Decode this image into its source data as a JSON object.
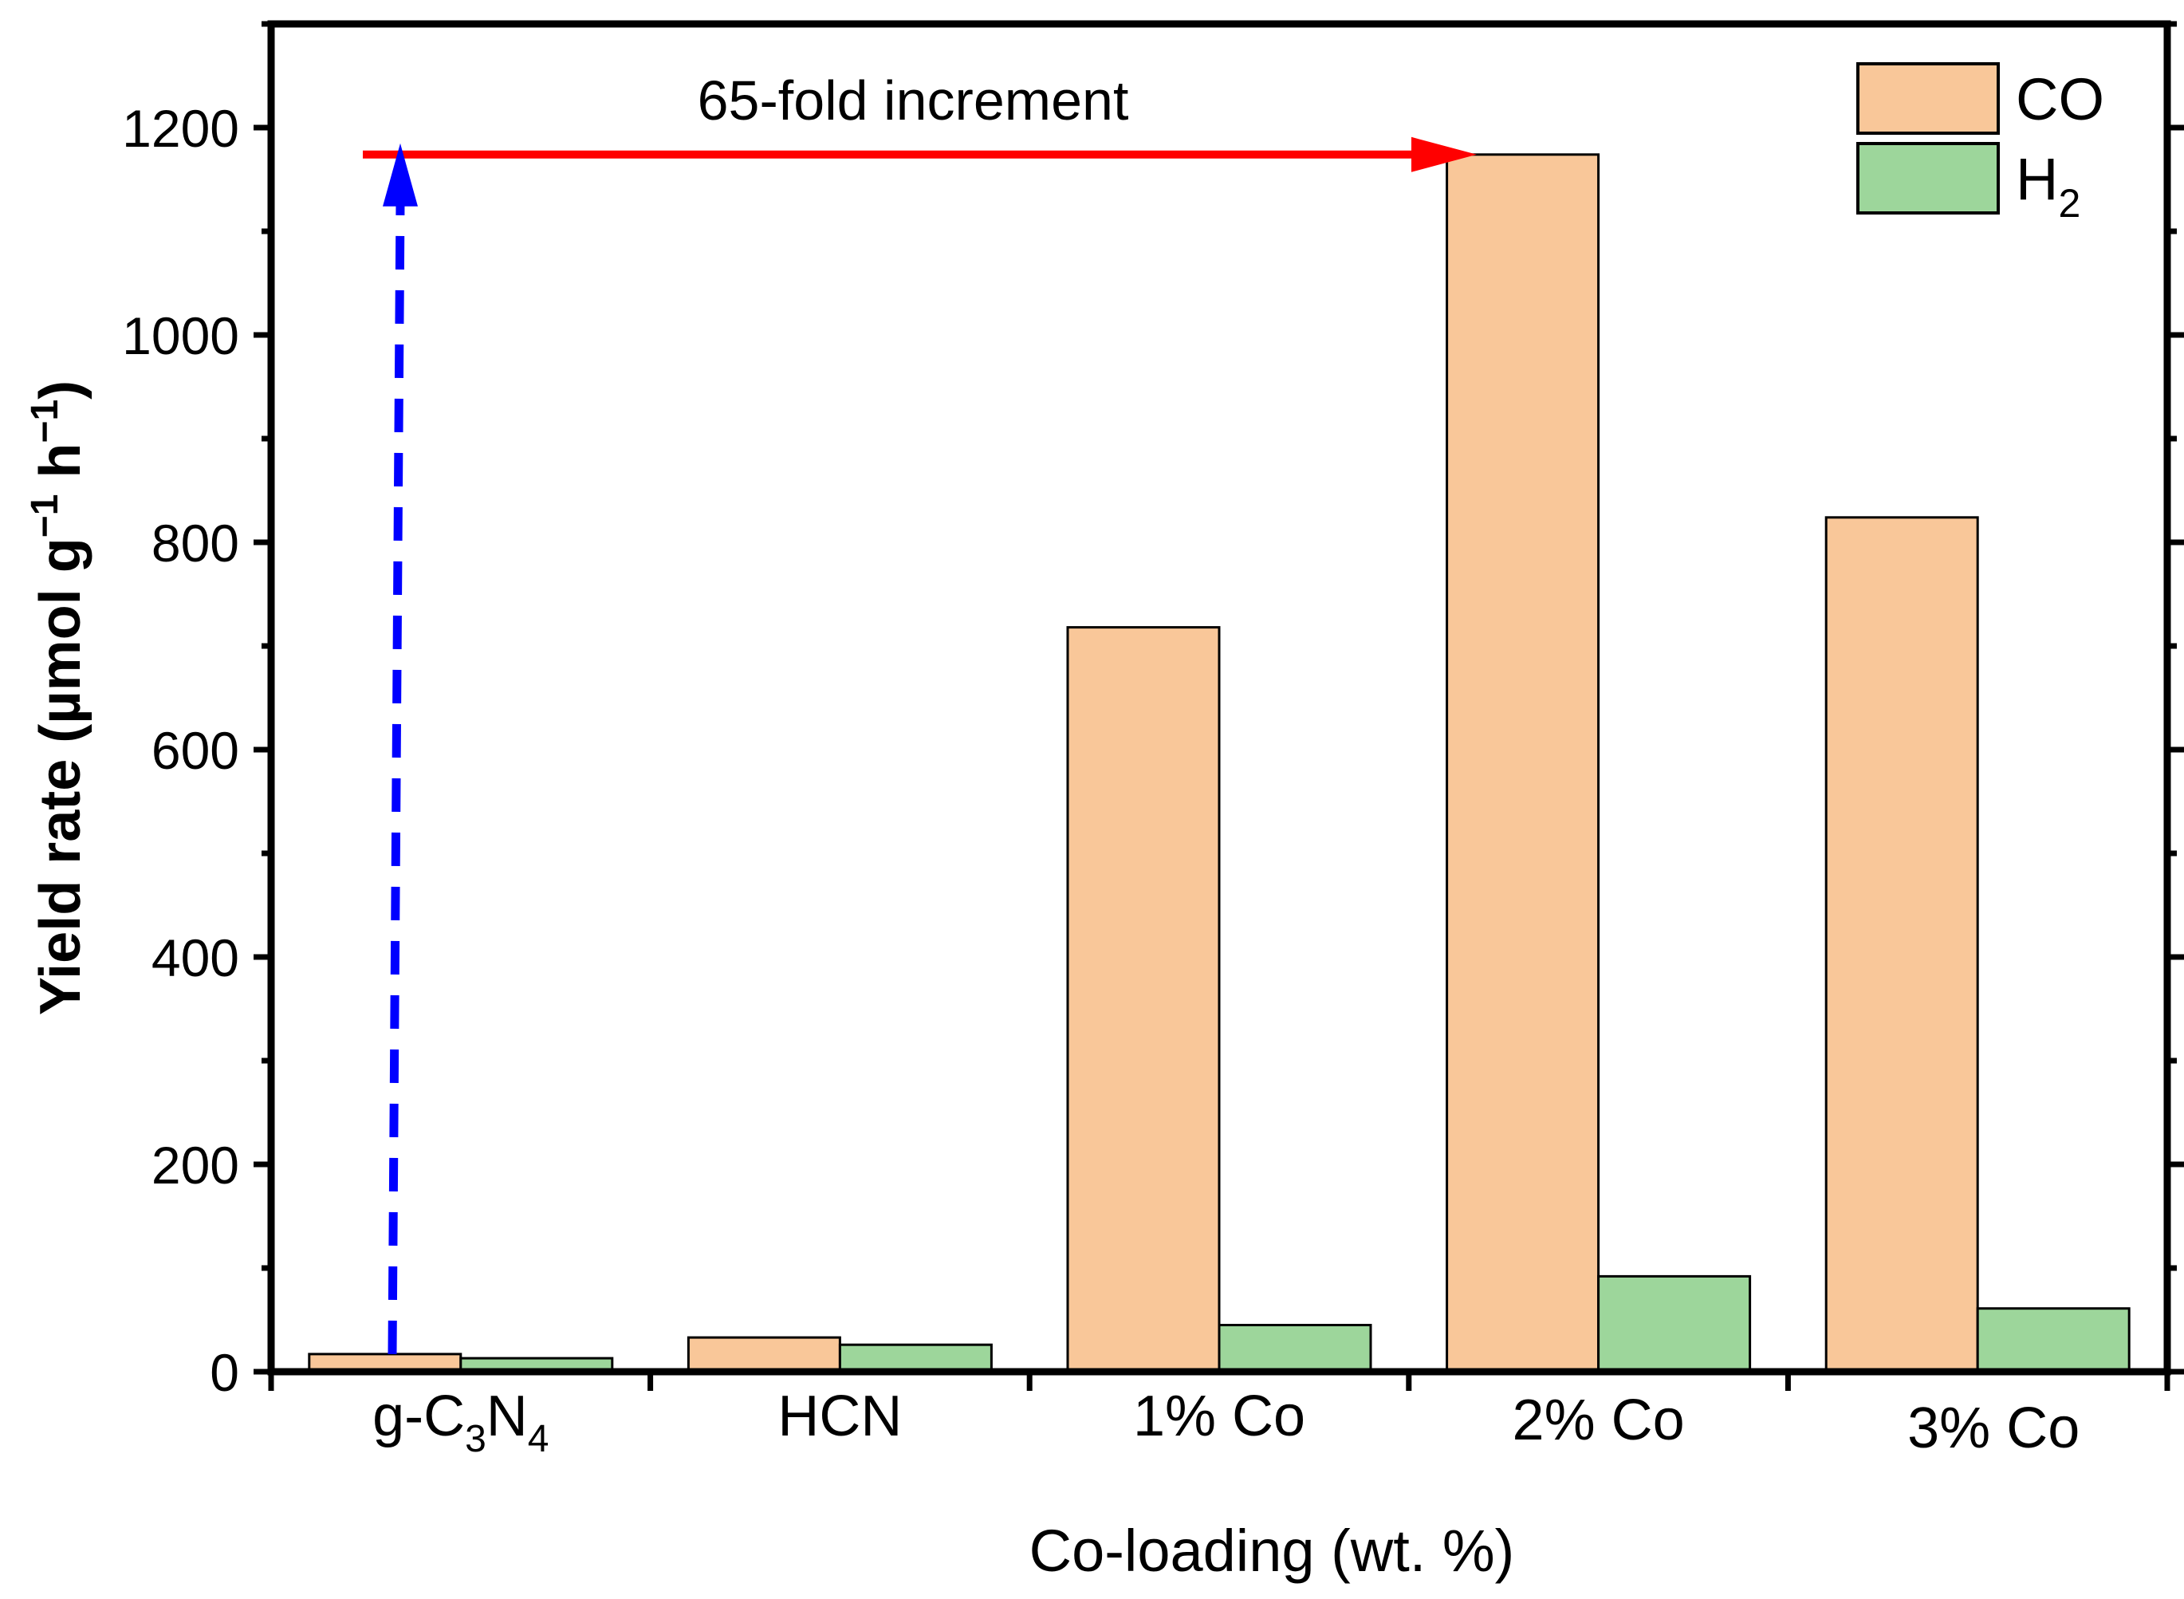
{
  "chart_data": {
    "type": "bar",
    "categories": [
      "g-C3N4",
      "HCN",
      "1% Co",
      "2% Co",
      "3% Co"
    ],
    "category_labels": [
      {
        "base": "g-C",
        "sub1": "3",
        "mid": "N",
        "sub2": "4"
      },
      {
        "base": "HCN"
      },
      {
        "base": "1% Co"
      },
      {
        "base": "2% Co"
      },
      {
        "base": "3% Co"
      }
    ],
    "series": [
      {
        "name": "CO",
        "label": "CO",
        "sub": "",
        "color": "#F9C799",
        "values": [
          17,
          33,
          718,
          1174,
          824
        ]
      },
      {
        "name": "H2",
        "label": "H",
        "sub": "2",
        "color": "#9DD69B",
        "values": [
          13,
          26,
          45,
          92,
          61
        ]
      }
    ],
    "xlabel": "Co-loading (wt. %)",
    "ylabel": {
      "main": "Yield rate (µmol g",
      "sup1": "−1",
      "mid": " h",
      "sup2": "−1",
      "end": ")"
    },
    "ylim": [
      0,
      1300
    ],
    "yticks": [
      0,
      200,
      400,
      600,
      800,
      1000,
      1200
    ],
    "legend_position": "top-right",
    "annotations": {
      "arrow_text": "65-fold increment",
      "arrow_value": 1174,
      "arrow_color": "#FF0000",
      "dashed_arrow_color": "#0000FF"
    }
  }
}
